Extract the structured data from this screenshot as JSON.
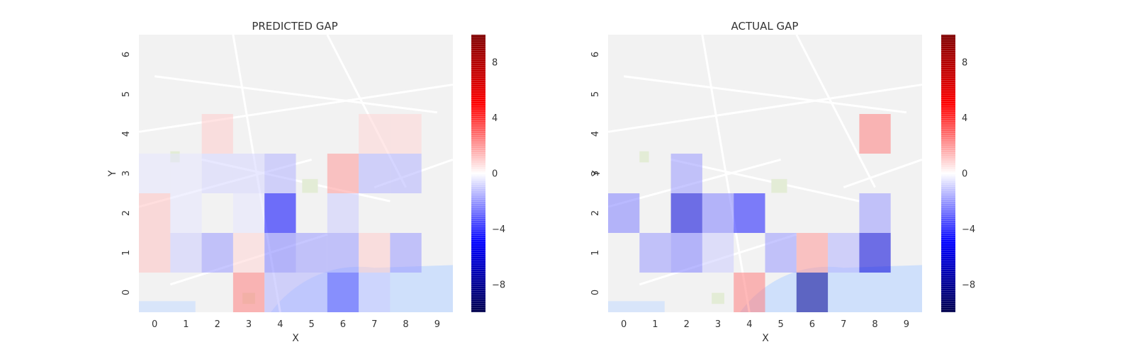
{
  "chart_data": [
    {
      "type": "heatmap",
      "title": "PREDICTED GAP",
      "xlabel": "X",
      "ylabel": "Y",
      "x_ticks": [
        "0",
        "1",
        "2",
        "3",
        "4",
        "5",
        "6",
        "7",
        "8",
        "9"
      ],
      "y_ticks": [
        "0",
        "1",
        "2",
        "3",
        "4",
        "5",
        "6"
      ],
      "background": "street map",
      "colorbar": {
        "range": [
          -10,
          10
        ],
        "ticks": [
          "8",
          "4",
          "0",
          "−4",
          "−8"
        ],
        "tick_values": [
          8,
          4,
          0,
          -4,
          -8
        ],
        "colormap": "seismic"
      },
      "cells": [
        {
          "x": 0,
          "y": 1,
          "value": 1.2
        },
        {
          "x": 0,
          "y": 2,
          "value": 1.2
        },
        {
          "x": 0,
          "y": 3,
          "value": -0.5
        },
        {
          "x": 1,
          "y": 1,
          "value": -1.0
        },
        {
          "x": 1,
          "y": 2,
          "value": -0.5
        },
        {
          "x": 1,
          "y": 3,
          "value": -0.5
        },
        {
          "x": 2,
          "y": 1,
          "value": -2.0
        },
        {
          "x": 2,
          "y": 3,
          "value": -0.8
        },
        {
          "x": 2,
          "y": 4,
          "value": 1.0
        },
        {
          "x": 3,
          "y": 0,
          "value": 2.5
        },
        {
          "x": 3,
          "y": 1,
          "value": 0.8
        },
        {
          "x": 3,
          "y": 2,
          "value": -0.5
        },
        {
          "x": 3,
          "y": 3,
          "value": -0.8
        },
        {
          "x": 4,
          "y": 0,
          "value": -1.5
        },
        {
          "x": 4,
          "y": 1,
          "value": -2.5
        },
        {
          "x": 4,
          "y": 2,
          "value": -5.0
        },
        {
          "x": 4,
          "y": 3,
          "value": -1.5
        },
        {
          "x": 5,
          "y": 0,
          "value": -1.5
        },
        {
          "x": 5,
          "y": 1,
          "value": -2.0
        },
        {
          "x": 6,
          "y": 0,
          "value": -3.5
        },
        {
          "x": 6,
          "y": 1,
          "value": -2.0
        },
        {
          "x": 6,
          "y": 2,
          "value": -1.0
        },
        {
          "x": 6,
          "y": 3,
          "value": 2.0
        },
        {
          "x": 7,
          "y": 0,
          "value": -1.0
        },
        {
          "x": 7,
          "y": 1,
          "value": 1.0
        },
        {
          "x": 7,
          "y": 3,
          "value": -1.5
        },
        {
          "x": 8,
          "y": 1,
          "value": -2.0
        },
        {
          "x": 8,
          "y": 3,
          "value": -1.5
        },
        {
          "x": 7,
          "y": 4,
          "value": 0.8
        },
        {
          "x": 8,
          "y": 4,
          "value": 0.8
        }
      ]
    },
    {
      "type": "heatmap",
      "title": "ACTUAL GAP",
      "xlabel": "X",
      "ylabel": "Y",
      "x_ticks": [
        "0",
        "1",
        "2",
        "3",
        "4",
        "5",
        "6",
        "7",
        "8",
        "9"
      ],
      "y_ticks": [
        "0",
        "1",
        "2",
        "3",
        "4",
        "5",
        "6"
      ],
      "background": "street map",
      "colorbar": {
        "range": [
          -10,
          10
        ],
        "ticks": [
          "8",
          "4",
          "0",
          "−4",
          "−8"
        ],
        "tick_values": [
          8,
          4,
          0,
          -4,
          -8
        ],
        "colormap": "seismic"
      },
      "cells": [
        {
          "x": 0,
          "y": 2,
          "value": -2.5
        },
        {
          "x": 1,
          "y": 1,
          "value": -2.0
        },
        {
          "x": 2,
          "y": 1,
          "value": -2.5
        },
        {
          "x": 2,
          "y": 2,
          "value": -6.0
        },
        {
          "x": 2,
          "y": 3,
          "value": -2.0
        },
        {
          "x": 3,
          "y": 1,
          "value": -1.0
        },
        {
          "x": 3,
          "y": 2,
          "value": -2.5
        },
        {
          "x": 4,
          "y": 0,
          "value": 2.5
        },
        {
          "x": 4,
          "y": 2,
          "value": -4.5
        },
        {
          "x": 5,
          "y": 1,
          "value": -2.0
        },
        {
          "x": 6,
          "y": 0,
          "value": -8.0
        },
        {
          "x": 6,
          "y": 1,
          "value": 2.0
        },
        {
          "x": 7,
          "y": 1,
          "value": -1.5
        },
        {
          "x": 8,
          "y": 1,
          "value": -6.0
        },
        {
          "x": 8,
          "y": 2,
          "value": -2.0
        },
        {
          "x": 8,
          "y": 4,
          "value": 2.5
        }
      ]
    }
  ]
}
